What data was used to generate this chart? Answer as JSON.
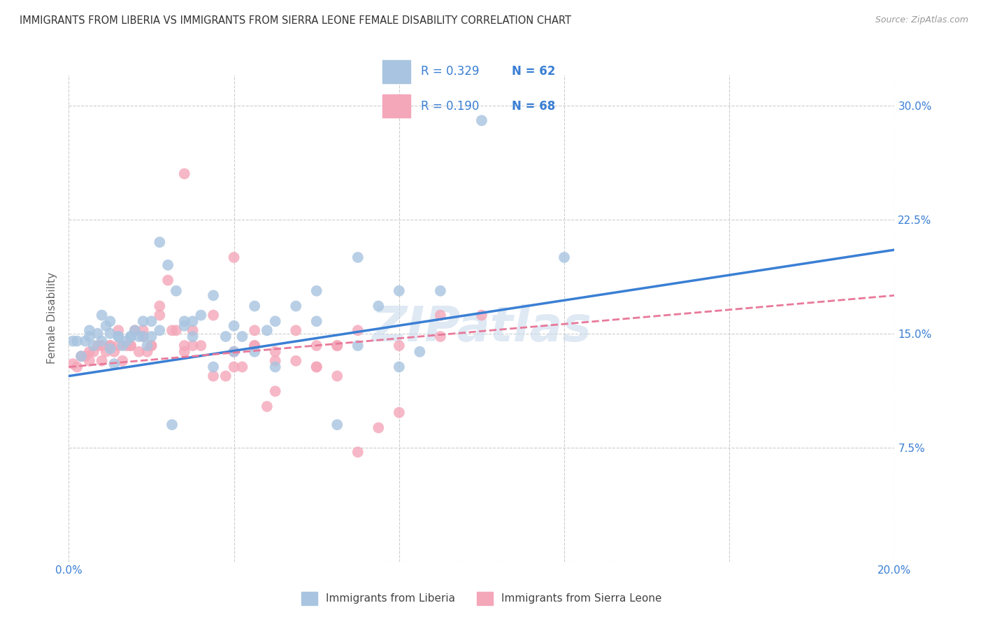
{
  "title": "IMMIGRANTS FROM LIBERIA VS IMMIGRANTS FROM SIERRA LEONE FEMALE DISABILITY CORRELATION CHART",
  "source": "Source: ZipAtlas.com",
  "ylabel": "Female Disability",
  "xlim": [
    0.0,
    0.2
  ],
  "ylim": [
    0.0,
    0.32
  ],
  "xticks": [
    0.0,
    0.04,
    0.08,
    0.12,
    0.16,
    0.2
  ],
  "xtick_labels": [
    "0.0%",
    "",
    "",
    "",
    "",
    "20.0%"
  ],
  "yticks": [
    0.0,
    0.075,
    0.15,
    0.225,
    0.3
  ],
  "ytick_labels": [
    "",
    "7.5%",
    "15.0%",
    "22.5%",
    "30.0%"
  ],
  "liberia_color": "#a8c4e0",
  "sierra_leone_color": "#f4a7b9",
  "liberia_line_color": "#3a7fd4",
  "sierra_leone_line_color": "#e8799a",
  "R_liberia": 0.329,
  "N_liberia": 62,
  "R_sierra_leone": 0.19,
  "N_sierra_leone": 68,
  "liberia_x": [
    0.001,
    0.002,
    0.003,
    0.004,
    0.005,
    0.006,
    0.007,
    0.008,
    0.009,
    0.01,
    0.01,
    0.011,
    0.012,
    0.013,
    0.014,
    0.015,
    0.016,
    0.017,
    0.018,
    0.019,
    0.02,
    0.022,
    0.024,
    0.026,
    0.028,
    0.03,
    0.032,
    0.035,
    0.038,
    0.04,
    0.042,
    0.045,
    0.048,
    0.05,
    0.055,
    0.06,
    0.065,
    0.07,
    0.075,
    0.08,
    0.085,
    0.09,
    0.005,
    0.008,
    0.01,
    0.012,
    0.015,
    0.018,
    0.02,
    0.022,
    0.025,
    0.028,
    0.03,
    0.035,
    0.04,
    0.045,
    0.05,
    0.06,
    0.07,
    0.08,
    0.1,
    0.12
  ],
  "liberia_y": [
    0.145,
    0.145,
    0.135,
    0.145,
    0.148,
    0.142,
    0.15,
    0.145,
    0.155,
    0.14,
    0.15,
    0.13,
    0.148,
    0.142,
    0.145,
    0.148,
    0.152,
    0.148,
    0.158,
    0.142,
    0.148,
    0.21,
    0.195,
    0.178,
    0.155,
    0.158,
    0.162,
    0.175,
    0.148,
    0.155,
    0.148,
    0.168,
    0.152,
    0.158,
    0.168,
    0.158,
    0.09,
    0.142,
    0.168,
    0.178,
    0.138,
    0.178,
    0.152,
    0.162,
    0.158,
    0.148,
    0.148,
    0.148,
    0.158,
    0.152,
    0.09,
    0.158,
    0.148,
    0.128,
    0.138,
    0.138,
    0.128,
    0.178,
    0.2,
    0.128,
    0.29,
    0.2
  ],
  "sierra_leone_x": [
    0.001,
    0.002,
    0.003,
    0.004,
    0.005,
    0.006,
    0.007,
    0.008,
    0.009,
    0.01,
    0.011,
    0.012,
    0.013,
    0.014,
    0.015,
    0.016,
    0.017,
    0.018,
    0.019,
    0.02,
    0.022,
    0.024,
    0.026,
    0.028,
    0.03,
    0.032,
    0.035,
    0.038,
    0.04,
    0.042,
    0.045,
    0.048,
    0.05,
    0.055,
    0.06,
    0.065,
    0.07,
    0.075,
    0.08,
    0.09,
    0.005,
    0.008,
    0.01,
    0.012,
    0.015,
    0.018,
    0.02,
    0.022,
    0.025,
    0.028,
    0.03,
    0.035,
    0.04,
    0.045,
    0.05,
    0.055,
    0.06,
    0.065,
    0.07,
    0.08,
    0.09,
    0.1,
    0.028,
    0.04,
    0.045,
    0.05,
    0.06,
    0.065
  ],
  "sierra_leone_y": [
    0.13,
    0.128,
    0.135,
    0.135,
    0.132,
    0.138,
    0.142,
    0.132,
    0.138,
    0.142,
    0.138,
    0.142,
    0.132,
    0.142,
    0.142,
    0.152,
    0.138,
    0.152,
    0.138,
    0.142,
    0.162,
    0.185,
    0.152,
    0.142,
    0.152,
    0.142,
    0.122,
    0.122,
    0.128,
    0.128,
    0.142,
    0.102,
    0.112,
    0.152,
    0.128,
    0.142,
    0.072,
    0.088,
    0.098,
    0.162,
    0.138,
    0.142,
    0.142,
    0.152,
    0.142,
    0.148,
    0.142,
    0.168,
    0.152,
    0.138,
    0.142,
    0.162,
    0.138,
    0.142,
    0.132,
    0.132,
    0.128,
    0.122,
    0.152,
    0.142,
    0.148,
    0.162,
    0.255,
    0.2,
    0.152,
    0.138,
    0.142,
    0.142
  ],
  "watermark": "ZIPatlas",
  "background_color": "#ffffff",
  "grid_color": "#cccccc"
}
